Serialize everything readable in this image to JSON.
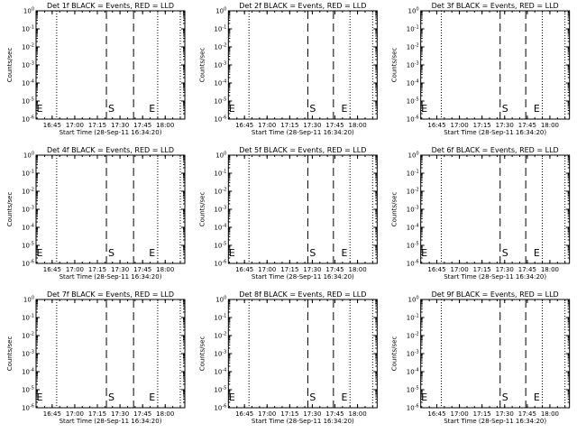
{
  "chart_data": [
    {
      "type": "line",
      "title": "Det 1f BLACK = Events, RED = LLD",
      "xlabel": "Start Time (28-Sep-11 16:34:20)",
      "ylabel": "Counts/sec",
      "x_ticks": [
        "16:45",
        "17:00",
        "17:15",
        "17:30",
        "17:45",
        "18:00"
      ],
      "y_ticks": [
        "10^0",
        "10^-1",
        "10^-2",
        "10^-3",
        "10^-4",
        "10^-5",
        "10^-6"
      ],
      "yscale": "log",
      "ylim": [
        1e-06,
        1
      ],
      "xlim": [
        "16:34:20",
        "18:13:00"
      ],
      "grid": false,
      "series": [],
      "markers": [
        {
          "label": "E",
          "time": "16:34"
        },
        {
          "label": "S",
          "time": "17:21"
        },
        {
          "label": "E",
          "time": "17:48"
        }
      ],
      "vlines": {
        "dotted": [
          "16:48",
          "17:55",
          "18:10"
        ],
        "dashed": [
          "17:21",
          "17:39"
        ]
      }
    },
    {
      "type": "line",
      "title": "Det 2f BLACK = Events, RED = LLD",
      "xlabel": "Start Time (28-Sep-11 16:34:20)",
      "ylabel": "Counts/sec",
      "x_ticks": [
        "16:45",
        "17:00",
        "17:15",
        "17:30",
        "17:45",
        "18:00"
      ],
      "y_ticks": [
        "10^0",
        "10^-1",
        "10^-2",
        "10^-3",
        "10^-4",
        "10^-5",
        "10^-6"
      ],
      "yscale": "log",
      "ylim": [
        1e-06,
        1
      ],
      "xlim": [
        "16:34:20",
        "18:13:00"
      ],
      "grid": false,
      "series": [],
      "markers": [
        {
          "label": "E",
          "time": "16:34"
        },
        {
          "label": "S",
          "time": "17:27"
        },
        {
          "label": "E",
          "time": "17:48"
        }
      ],
      "vlines": {
        "dotted": [
          "16:48",
          "17:55",
          "18:10"
        ],
        "dashed": [
          "17:27",
          "17:44"
        ]
      }
    },
    {
      "type": "line",
      "title": "Det 3f BLACK = Events, RED = LLD",
      "xlabel": "Start Time (28-Sep-11 16:34:20)",
      "ylabel": "Counts/sec",
      "x_ticks": [
        "16:45",
        "17:00",
        "17:15",
        "17:30",
        "17:45",
        "18:00"
      ],
      "y_ticks": [
        "10^0",
        "10^-1",
        "10^-2",
        "10^-3",
        "10^-4",
        "10^-5",
        "10^-6"
      ],
      "yscale": "log",
      "ylim": [
        1e-06,
        1
      ],
      "xlim": [
        "16:34:20",
        "18:13:00"
      ],
      "grid": false,
      "series": [],
      "markers": [
        {
          "label": "E",
          "time": "16:34"
        },
        {
          "label": "S",
          "time": "17:27"
        },
        {
          "label": "E",
          "time": "17:48"
        }
      ],
      "vlines": {
        "dotted": [
          "16:48",
          "17:55",
          "18:10"
        ],
        "dashed": [
          "17:27",
          "17:44"
        ]
      }
    },
    {
      "type": "line",
      "title": "Det 4f BLACK = Events, RED = LLD",
      "xlabel": "Start Time (28-Sep-11 16:34:20)",
      "ylabel": "Counts/sec",
      "x_ticks": [
        "16:45",
        "17:00",
        "17:15",
        "17:30",
        "17:45",
        "18:00"
      ],
      "y_ticks": [
        "10^0",
        "10^-1",
        "10^-2",
        "10^-3",
        "10^-4",
        "10^-5",
        "10^-6"
      ],
      "yscale": "log",
      "ylim": [
        1e-06,
        1
      ],
      "xlim": [
        "16:34:20",
        "18:13:00"
      ],
      "grid": false,
      "series": [],
      "markers": [
        {
          "label": "E",
          "time": "16:34"
        },
        {
          "label": "S",
          "time": "17:21"
        },
        {
          "label": "E",
          "time": "17:48"
        }
      ],
      "vlines": {
        "dotted": [
          "16:48",
          "17:55",
          "18:10"
        ],
        "dashed": [
          "17:21",
          "17:39"
        ]
      }
    },
    {
      "type": "line",
      "title": "Det 5f BLACK = Events, RED = LLD",
      "xlabel": "Start Time (28-Sep-11 16:34:20)",
      "ylabel": "Counts/sec",
      "x_ticks": [
        "16:45",
        "17:00",
        "17:15",
        "17:30",
        "17:45",
        "18:00"
      ],
      "y_ticks": [
        "10^0",
        "10^-1",
        "10^-2",
        "10^-3",
        "10^-4",
        "10^-5",
        "10^-6"
      ],
      "yscale": "log",
      "ylim": [
        1e-06,
        1
      ],
      "xlim": [
        "16:34:20",
        "18:13:00"
      ],
      "grid": false,
      "series": [],
      "markers": [
        {
          "label": "E",
          "time": "16:34"
        },
        {
          "label": "S",
          "time": "17:27"
        },
        {
          "label": "E",
          "time": "17:48"
        }
      ],
      "vlines": {
        "dotted": [
          "16:48",
          "17:55",
          "18:10"
        ],
        "dashed": [
          "17:27",
          "17:44"
        ]
      }
    },
    {
      "type": "line",
      "title": "Det 6f BLACK = Events, RED = LLD",
      "xlabel": "Start Time (28-Sep-11 16:34:20)",
      "ylabel": "Counts/sec",
      "x_ticks": [
        "16:45",
        "17:00",
        "17:15",
        "17:30",
        "17:45",
        "18:00"
      ],
      "y_ticks": [
        "10^0",
        "10^-1",
        "10^-2",
        "10^-3",
        "10^-4",
        "10^-5",
        "10^-6"
      ],
      "yscale": "log",
      "ylim": [
        1e-06,
        1
      ],
      "xlim": [
        "16:34:20",
        "18:13:00"
      ],
      "grid": false,
      "series": [],
      "markers": [
        {
          "label": "E",
          "time": "16:34"
        },
        {
          "label": "S",
          "time": "17:27"
        },
        {
          "label": "E",
          "time": "17:48"
        }
      ],
      "vlines": {
        "dotted": [
          "16:48",
          "17:55",
          "18:10"
        ],
        "dashed": [
          "17:27",
          "17:44"
        ]
      }
    },
    {
      "type": "line",
      "title": "Det 7f BLACK = Events, RED = LLD",
      "xlabel": "Start Time (28-Sep-11 16:34:20)",
      "ylabel": "Counts/sec",
      "x_ticks": [
        "16:45",
        "17:00",
        "17:15",
        "17:30",
        "17:45",
        "18:00"
      ],
      "y_ticks": [
        "10^0",
        "10^-1",
        "10^-2",
        "10^-3",
        "10^-4",
        "10^-5",
        "10^-6"
      ],
      "yscale": "log",
      "ylim": [
        1e-06,
        1
      ],
      "xlim": [
        "16:34:20",
        "18:13:00"
      ],
      "grid": false,
      "series": [],
      "markers": [
        {
          "label": "E",
          "time": "16:34"
        },
        {
          "label": "S",
          "time": "17:21"
        },
        {
          "label": "E",
          "time": "17:48"
        }
      ],
      "vlines": {
        "dotted": [
          "16:48",
          "17:55",
          "18:10"
        ],
        "dashed": [
          "17:21",
          "17:39"
        ]
      }
    },
    {
      "type": "line",
      "title": "Det 8f BLACK = Events, RED = LLD",
      "xlabel": "Start Time (28-Sep-11 16:34:20)",
      "ylabel": "Counts/sec",
      "x_ticks": [
        "16:45",
        "17:00",
        "17:15",
        "17:30",
        "17:45",
        "18:00"
      ],
      "y_ticks": [
        "10^0",
        "10^-1",
        "10^-2",
        "10^-3",
        "10^-4",
        "10^-5",
        "10^-6"
      ],
      "yscale": "log",
      "ylim": [
        1e-06,
        1
      ],
      "xlim": [
        "16:34:20",
        "18:13:00"
      ],
      "grid": false,
      "series": [],
      "markers": [
        {
          "label": "E",
          "time": "16:34"
        },
        {
          "label": "S",
          "time": "17:27"
        },
        {
          "label": "E",
          "time": "17:48"
        }
      ],
      "vlines": {
        "dotted": [
          "16:48",
          "17:55",
          "18:10"
        ],
        "dashed": [
          "17:27",
          "17:44"
        ]
      }
    },
    {
      "type": "line",
      "title": "Det 9f BLACK = Events, RED = LLD",
      "xlabel": "Start Time (28-Sep-11 16:34:20)",
      "ylabel": "Counts/sec",
      "x_ticks": [
        "16:45",
        "17:00",
        "17:15",
        "17:30",
        "17:45",
        "18:00"
      ],
      "y_ticks": [
        "10^0",
        "10^-1",
        "10^-2",
        "10^-3",
        "10^-4",
        "10^-5",
        "10^-6"
      ],
      "yscale": "log",
      "ylim": [
        1e-06,
        1
      ],
      "xlim": [
        "16:34:20",
        "18:13:00"
      ],
      "grid": false,
      "series": [],
      "markers": [
        {
          "label": "E",
          "time": "16:34"
        },
        {
          "label": "S",
          "time": "17:27"
        },
        {
          "label": "E",
          "time": "17:48"
        }
      ],
      "vlines": {
        "dotted": [
          "16:48",
          "17:55",
          "18:10"
        ],
        "dashed": [
          "17:27",
          "17:44"
        ]
      }
    }
  ]
}
